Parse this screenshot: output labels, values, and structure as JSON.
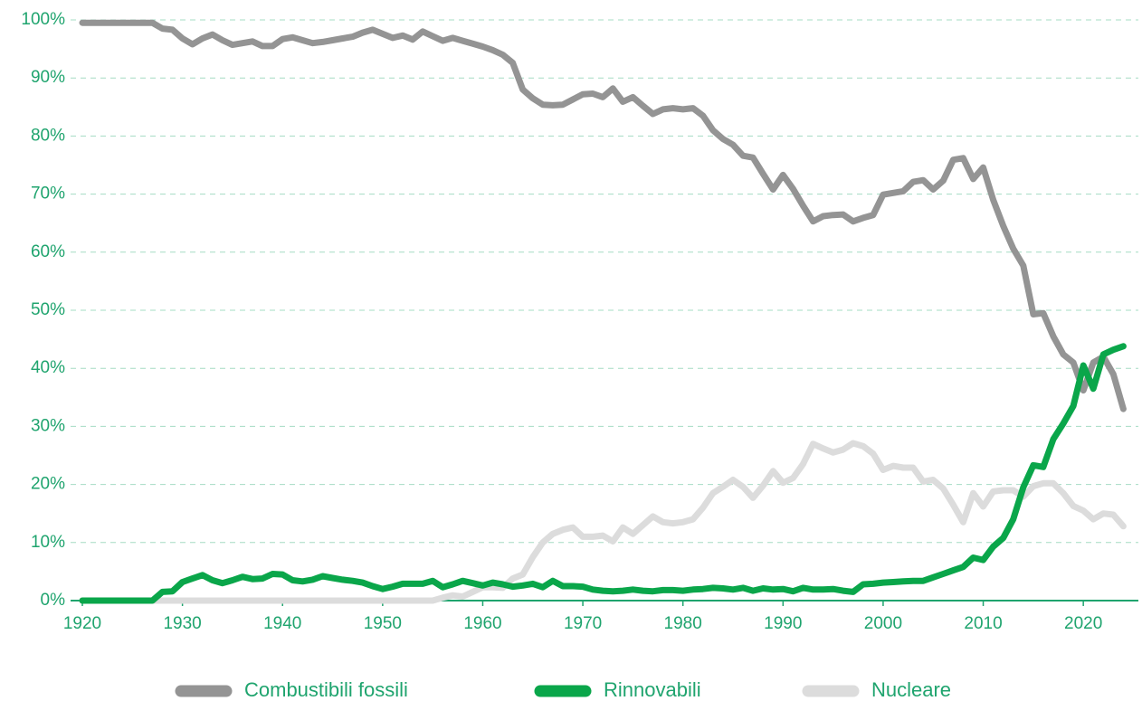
{
  "chart_data": {
    "type": "line",
    "x": [
      1920,
      1921,
      1922,
      1923,
      1924,
      1925,
      1926,
      1927,
      1928,
      1929,
      1930,
      1931,
      1932,
      1933,
      1934,
      1935,
      1936,
      1937,
      1938,
      1939,
      1940,
      1941,
      1942,
      1943,
      1944,
      1945,
      1946,
      1947,
      1948,
      1949,
      1950,
      1951,
      1952,
      1953,
      1954,
      1955,
      1956,
      1957,
      1958,
      1959,
      1960,
      1961,
      1962,
      1963,
      1964,
      1965,
      1966,
      1967,
      1968,
      1969,
      1970,
      1971,
      1972,
      1973,
      1974,
      1975,
      1976,
      1977,
      1978,
      1979,
      1980,
      1981,
      1982,
      1983,
      1984,
      1985,
      1986,
      1987,
      1988,
      1989,
      1990,
      1991,
      1992,
      1993,
      1994,
      1995,
      1996,
      1997,
      1998,
      1999,
      2000,
      2001,
      2002,
      2003,
      2004,
      2005,
      2006,
      2007,
      2008,
      2009,
      2010,
      2011,
      2012,
      2013,
      2014,
      2015,
      2016,
      2017,
      2018,
      2019,
      2020,
      2021,
      2022,
      2023,
      2024
    ],
    "series": [
      {
        "name": "Combustibili fossili",
        "color": "#949494",
        "values": [
          99.5,
          99.5,
          99.5,
          99.5,
          99.5,
          99.5,
          99.5,
          99.5,
          98.5,
          98.3,
          96.8,
          95.8,
          96.8,
          97.5,
          96.5,
          95.7,
          96,
          96.3,
          95.5,
          95.5,
          96.7,
          97,
          96.5,
          96,
          96.2,
          96.5,
          96.8,
          97.1,
          97.8,
          98.3,
          97.6,
          96.9,
          97.3,
          96.6,
          98,
          97.2,
          96.4,
          96.9,
          96.4,
          95.9,
          95.4,
          94.8,
          94,
          92.6,
          88,
          86.5,
          85.4,
          85.3,
          85.4,
          86.3,
          87.2,
          87.3,
          86.7,
          88.2,
          85.9,
          86.7,
          85.2,
          83.8,
          84.6,
          84.8,
          84.6,
          84.8,
          83.5,
          81,
          79.5,
          78.5,
          76.6,
          76.3,
          73.5,
          70.8,
          73.3,
          70.9,
          68,
          65.3,
          66.2,
          66.4,
          66.5,
          65.3,
          65.9,
          66.4,
          69.9,
          70.2,
          70.5,
          72.1,
          72.4,
          70.8,
          72.3,
          75.9,
          76.2,
          72.6,
          74.6,
          69,
          64.5,
          60.6,
          57.7,
          49.3,
          49.5,
          45.5,
          42.4,
          41,
          36.2,
          41,
          42,
          39,
          33
        ]
      },
      {
        "name": "Rinnovabili",
        "color": "#0aa64a",
        "values": [
          0,
          0,
          0,
          0,
          0,
          0,
          0,
          0,
          1.5,
          1.6,
          3.2,
          3.8,
          4.4,
          3.5,
          3,
          3.5,
          4.1,
          3.7,
          3.8,
          4.6,
          4.5,
          3.5,
          3.3,
          3.6,
          4.2,
          3.9,
          3.6,
          3.4,
          3.1,
          2.5,
          2,
          2.4,
          2.9,
          2.9,
          2.9,
          3.4,
          2.3,
          2.8,
          3.4,
          3,
          2.6,
          3.1,
          2.8,
          2.4,
          2.6,
          2.9,
          2.3,
          3.4,
          2.5,
          2.5,
          2.4,
          1.9,
          1.7,
          1.6,
          1.7,
          1.9,
          1.7,
          1.6,
          1.8,
          1.8,
          1.7,
          1.9,
          2,
          2.2,
          2.1,
          1.9,
          2.2,
          1.7,
          2.1,
          1.9,
          2,
          1.6,
          2.2,
          1.9,
          1.9,
          2,
          1.7,
          1.5,
          2.8,
          2.9,
          3.1,
          3.2,
          3.3,
          3.4,
          3.4,
          4,
          4.6,
          5.2,
          5.8,
          7.4,
          7,
          9.3,
          10.8,
          14,
          19.5,
          23.3,
          23,
          27.8,
          30.5,
          33.5,
          40.5,
          36.5,
          42.4,
          43.2,
          43.8
        ]
      },
      {
        "name": "Nucleare",
        "color": "#dcdcdc",
        "values": [
          0,
          0,
          0,
          0,
          0,
          0,
          0,
          0,
          0,
          0,
          0,
          0,
          0,
          0,
          0,
          0,
          0,
          0,
          0,
          0,
          0,
          0,
          0,
          0,
          0,
          0,
          0,
          0,
          0,
          0,
          0,
          0,
          0,
          0,
          0,
          0,
          0.5,
          0.9,
          0.7,
          1.5,
          2.3,
          2.3,
          2.2,
          3.8,
          4.5,
          7.5,
          10,
          11.5,
          12.2,
          12.6,
          11,
          11,
          11.2,
          10.2,
          12.6,
          11.5,
          13,
          14.5,
          13.5,
          13.3,
          13.5,
          14,
          16,
          18.5,
          19.6,
          20.8,
          19.6,
          17.7,
          19.8,
          22.3,
          20.3,
          21.1,
          23.5,
          27,
          26.2,
          25.5,
          26,
          27.1,
          26.6,
          25.3,
          22.5,
          23.2,
          22.9,
          22.9,
          20.5,
          20.8,
          19.3,
          16.5,
          13.5,
          18.5,
          16.2,
          18.8,
          19,
          19,
          17.9,
          19.7,
          20.2,
          20.2,
          18.5,
          16.3,
          15.5,
          14,
          15,
          14.8,
          12.8
        ]
      }
    ],
    "xlim": [
      1920,
      2025.5
    ],
    "xticks": [
      1920,
      1930,
      1940,
      1950,
      1960,
      1970,
      1980,
      1990,
      2000,
      2010,
      2020
    ],
    "ylim": [
      0,
      100
    ],
    "yticks": [
      {
        "value": 0,
        "label": "0%"
      },
      {
        "value": 10,
        "label": "10%"
      },
      {
        "value": 20,
        "label": "20%"
      },
      {
        "value": 30,
        "label": "30%"
      },
      {
        "value": 40,
        "label": "40%"
      },
      {
        "value": 50,
        "label": "50%"
      },
      {
        "value": 60,
        "label": "60%"
      },
      {
        "value": 70,
        "label": "70%"
      },
      {
        "value": 80,
        "label": "80%"
      },
      {
        "value": 90,
        "label": "90%"
      },
      {
        "value": 100,
        "label": "100%"
      }
    ],
    "grid": true,
    "legend": "bottom"
  }
}
